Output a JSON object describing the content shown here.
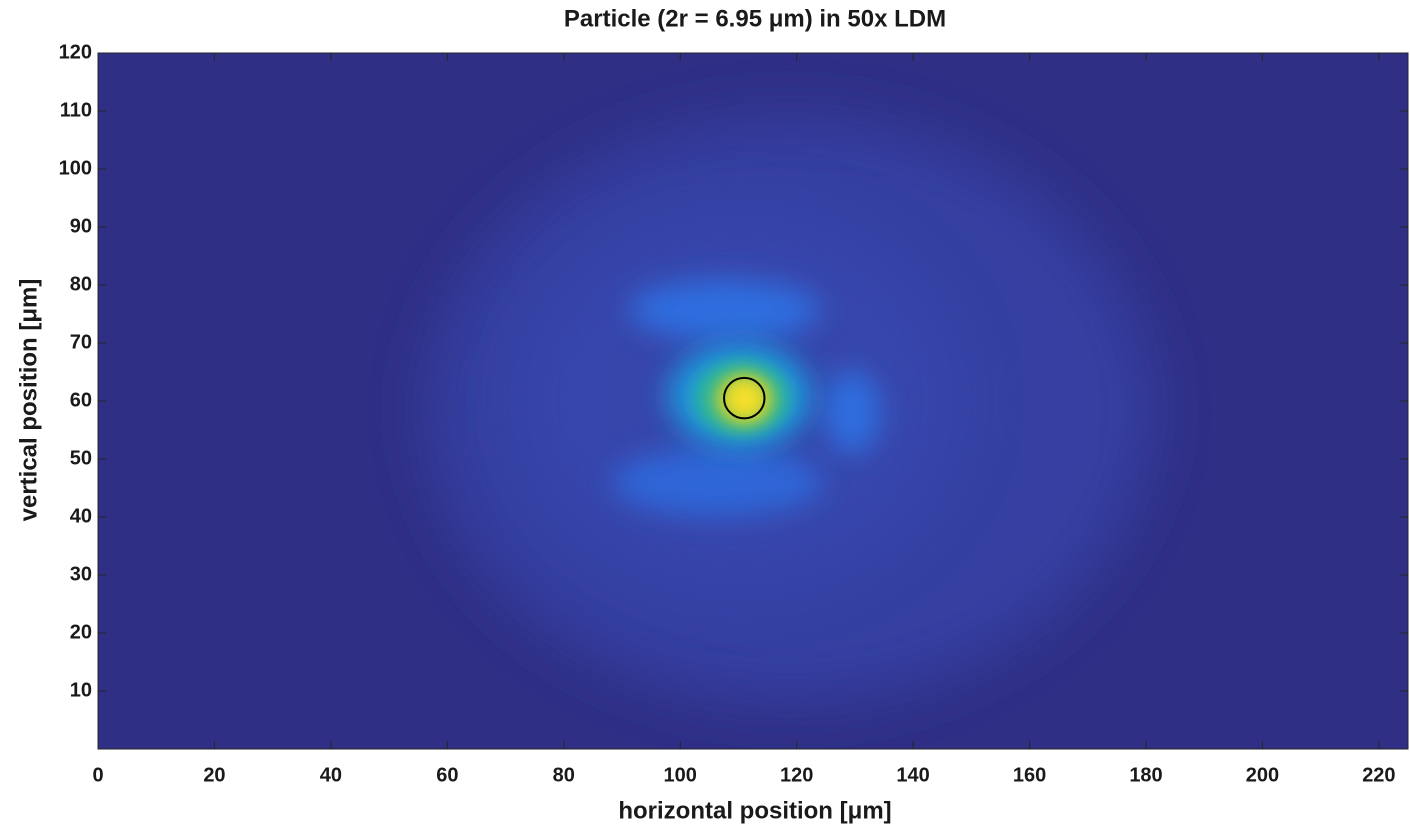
{
  "chart_data": {
    "type": "image",
    "title": "Particle (2r = 6.95 μm) in 50x LDM",
    "x_label": "horizontal position [μm]",
    "y_label": "vertical position [μm]",
    "xlim": [
      0,
      225
    ],
    "ylim": [
      0,
      120
    ],
    "xticks": [
      0,
      20,
      40,
      60,
      80,
      100,
      120,
      140,
      160,
      180,
      200,
      220
    ],
    "yticks": [
      10,
      20,
      30,
      40,
      50,
      60,
      70,
      80,
      90,
      100,
      110,
      120
    ],
    "circle": {
      "x": 111,
      "y": 60.5,
      "diameter": 6.95,
      "color": "#000000"
    }
  }
}
